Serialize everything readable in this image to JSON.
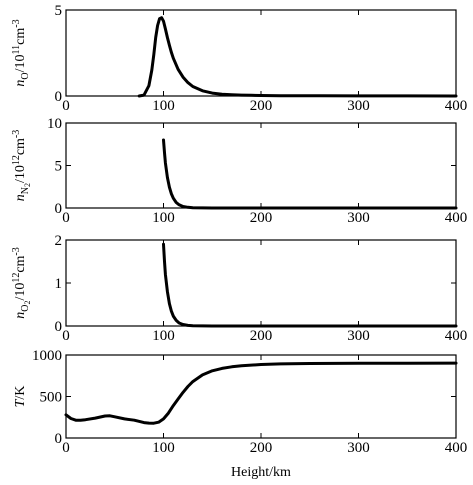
{
  "chart_data": [
    {
      "type": "line",
      "ylabel_var": "n",
      "ylabel_sub": "O",
      "ylabel_unit_pre": "/10",
      "ylabel_exp": "11",
      "ylabel_unit_post": "cm",
      "ylabel_unit_exp": "-3",
      "xlim": [
        0,
        400
      ],
      "ylim": [
        0,
        5
      ],
      "xticks": [
        0,
        100,
        200,
        300,
        400
      ],
      "yticks": [
        0,
        5
      ],
      "xticklabels": [
        "0",
        "100",
        "200",
        "300",
        "400"
      ],
      "yticklabels": [
        "0",
        "5"
      ],
      "x": [
        75,
        80,
        85,
        88,
        90,
        92,
        94,
        96,
        98,
        100,
        102,
        104,
        106,
        108,
        110,
        115,
        120,
        125,
        130,
        140,
        150,
        160,
        170,
        180,
        190,
        200,
        220,
        240,
        260,
        300,
        350,
        400
      ],
      "y": [
        0.0,
        0.05,
        0.6,
        1.5,
        2.4,
        3.4,
        4.1,
        4.5,
        4.55,
        4.35,
        3.9,
        3.4,
        2.95,
        2.55,
        2.2,
        1.55,
        1.1,
        0.78,
        0.55,
        0.3,
        0.17,
        0.1,
        0.07,
        0.05,
        0.04,
        0.03,
        0.02,
        0.015,
        0.01,
        0.005,
        0.003,
        0.002
      ]
    },
    {
      "type": "line",
      "ylabel_var": "n",
      "ylabel_sub": "N",
      "ylabel_subsub": "2",
      "ylabel_unit_pre": "/10",
      "ylabel_exp": "12",
      "ylabel_unit_post": "cm",
      "ylabel_unit_exp": "-3",
      "xlim": [
        0,
        400
      ],
      "ylim": [
        0,
        10
      ],
      "xticks": [
        0,
        100,
        200,
        300,
        400
      ],
      "yticks": [
        0,
        5,
        10
      ],
      "xticklabels": [
        "0",
        "100",
        "200",
        "300",
        "400"
      ],
      "yticklabels": [
        "0",
        "5",
        "10"
      ],
      "x": [
        100,
        101,
        102,
        104,
        106,
        108,
        110,
        113,
        116,
        120,
        125,
        130,
        140,
        150,
        175,
        200,
        250,
        300,
        400
      ],
      "y": [
        8.0,
        6.5,
        5.3,
        3.6,
        2.45,
        1.7,
        1.15,
        0.65,
        0.38,
        0.18,
        0.08,
        0.04,
        0.01,
        0.005,
        0.001,
        0.0,
        0.0,
        0.0,
        0.0
      ]
    },
    {
      "type": "line",
      "ylabel_var": "n",
      "ylabel_sub": "O",
      "ylabel_subsub": "2",
      "ylabel_unit_pre": "/10",
      "ylabel_exp": "12",
      "ylabel_unit_post": "cm",
      "ylabel_unit_exp": "-3",
      "xlim": [
        0,
        400
      ],
      "ylim": [
        0,
        2
      ],
      "xticks": [
        0,
        100,
        200,
        300,
        400
      ],
      "yticks": [
        0,
        1,
        2
      ],
      "xticklabels": [
        "0",
        "100",
        "200",
        "300",
        "400"
      ],
      "yticklabels": [
        "0",
        "1",
        "2"
      ],
      "x": [
        100,
        101,
        102,
        104,
        106,
        108,
        110,
        113,
        116,
        120,
        125,
        130,
        140,
        150,
        175,
        200,
        250,
        300,
        400
      ],
      "y": [
        1.9,
        1.5,
        1.2,
        0.8,
        0.52,
        0.35,
        0.23,
        0.13,
        0.07,
        0.035,
        0.015,
        0.007,
        0.002,
        0.0,
        0.0,
        0.0,
        0.0,
        0.0,
        0.0
      ]
    },
    {
      "type": "line",
      "ylabel_var": "T",
      "ylabel_unit_pre": "/K",
      "xlabel": "Height/km",
      "xlim": [
        0,
        400
      ],
      "ylim": [
        0,
        1000
      ],
      "xticks": [
        0,
        100,
        200,
        300,
        400
      ],
      "yticks": [
        0,
        500,
        1000
      ],
      "xticklabels": [
        "0",
        "100",
        "200",
        "300",
        "400"
      ],
      "yticklabels": [
        "0",
        "500",
        "1000"
      ],
      "x": [
        0,
        5,
        10,
        15,
        20,
        30,
        40,
        45,
        50,
        60,
        70,
        80,
        85,
        90,
        95,
        100,
        105,
        110,
        115,
        120,
        125,
        130,
        140,
        150,
        160,
        170,
        180,
        200,
        220,
        250,
        300,
        350,
        400
      ],
      "y": [
        280,
        235,
        215,
        215,
        220,
        240,
        265,
        268,
        255,
        230,
        215,
        185,
        180,
        178,
        190,
        230,
        300,
        390,
        470,
        550,
        620,
        680,
        760,
        810,
        838,
        858,
        870,
        885,
        893,
        898,
        900,
        901,
        902
      ]
    }
  ]
}
